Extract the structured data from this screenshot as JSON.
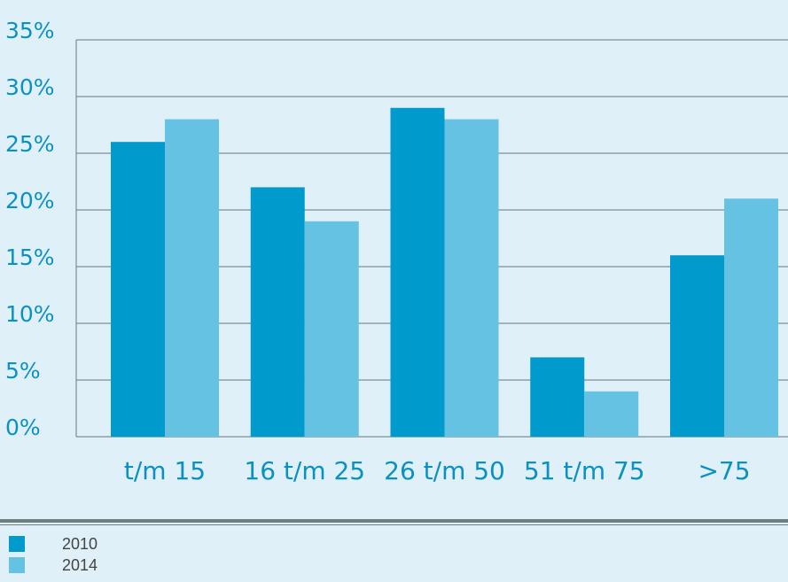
{
  "chart_data": {
    "type": "bar",
    "categories": [
      "t/m 15",
      "16 t/m 25",
      "26 t/m 50",
      "51 t/m 75",
      ">75"
    ],
    "series": [
      {
        "name": "2010",
        "values": [
          26,
          22,
          29,
          7,
          16
        ],
        "color": "#009bcc"
      },
      {
        "name": "2014",
        "values": [
          28,
          19,
          28,
          4,
          21
        ],
        "color": "#66c2e3"
      }
    ],
    "y_ticks": [
      "0%",
      "5%",
      "10%",
      "15%",
      "20%",
      "25%",
      "30%",
      "35%"
    ],
    "ylim": [
      0,
      35
    ],
    "grid": true,
    "legend_position": "bottom-left"
  }
}
